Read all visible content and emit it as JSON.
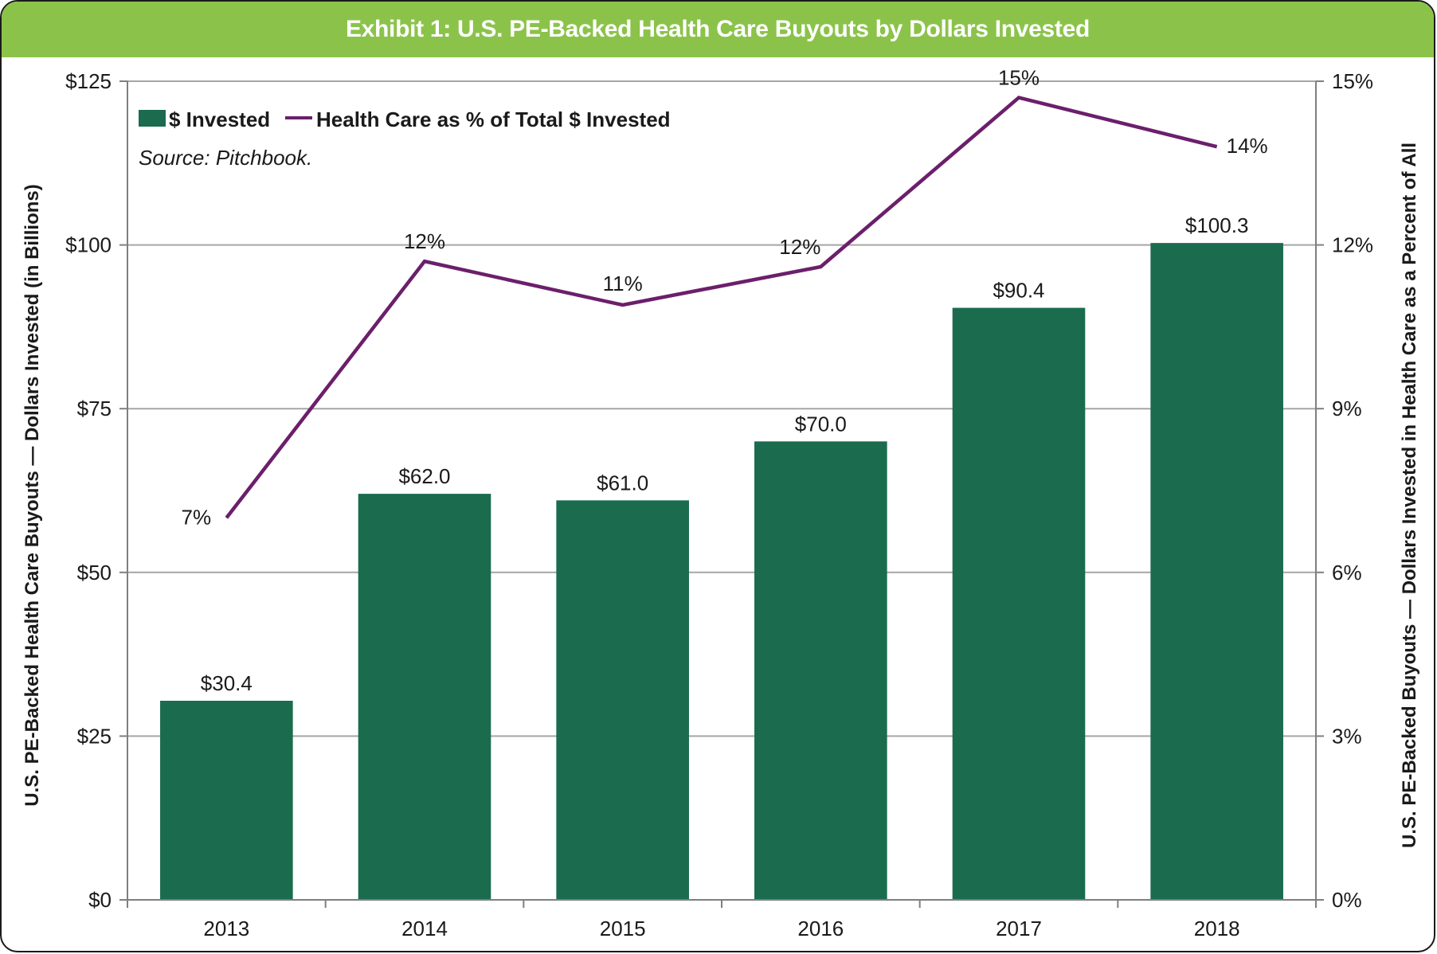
{
  "title": "Exhibit 1: U.S. PE-Backed Health Care Buyouts by Dollars Invested",
  "source": "Source: Pitchbook.",
  "colors": {
    "title_bar": "#8bc34a",
    "bar": "#1b6b4f",
    "line": "#6b1f6b",
    "grid": "#a6a6a6",
    "axis": "#7f7f7f"
  },
  "chart_data": {
    "type": "bar",
    "categories": [
      "2013",
      "2014",
      "2015",
      "2016",
      "2017",
      "2018"
    ],
    "series": [
      {
        "name": "$ Invested",
        "type": "bar",
        "axis": "left",
        "values": [
          30.4,
          62.0,
          61.0,
          70.0,
          90.4,
          100.3
        ],
        "labels": [
          "$30.4",
          "$62.0",
          "$61.0",
          "$70.0",
          "$90.4",
          "$100.3"
        ]
      },
      {
        "name": "Health Care as % of Total $ Invested",
        "type": "line",
        "axis": "right",
        "values": [
          7,
          11.7,
          10.9,
          11.6,
          14.7,
          13.8
        ],
        "labels": [
          "7%",
          "12%",
          "11%",
          "12%",
          "15%",
          "14%"
        ]
      }
    ],
    "y_left": {
      "label": "U.S. PE-Backed Health Care Buyouts — Dollars Invested (in Billions)",
      "min": 0,
      "max": 125,
      "ticks": [
        0,
        25,
        50,
        75,
        100,
        125
      ],
      "tick_labels": [
        "$0",
        "$25",
        "$50",
        "$75",
        "$100",
        "$125"
      ]
    },
    "y_right": {
      "label": "U.S. PE-Backed Buyouts — Dollars Invested in Health Care as a Percent of All",
      "min": 0,
      "max": 15,
      "ticks": [
        0,
        3,
        6,
        9,
        12,
        15
      ],
      "tick_labels": [
        "0%",
        "3%",
        "6%",
        "9%",
        "12%",
        "15%"
      ]
    },
    "grid": true,
    "legend": "top-left"
  }
}
